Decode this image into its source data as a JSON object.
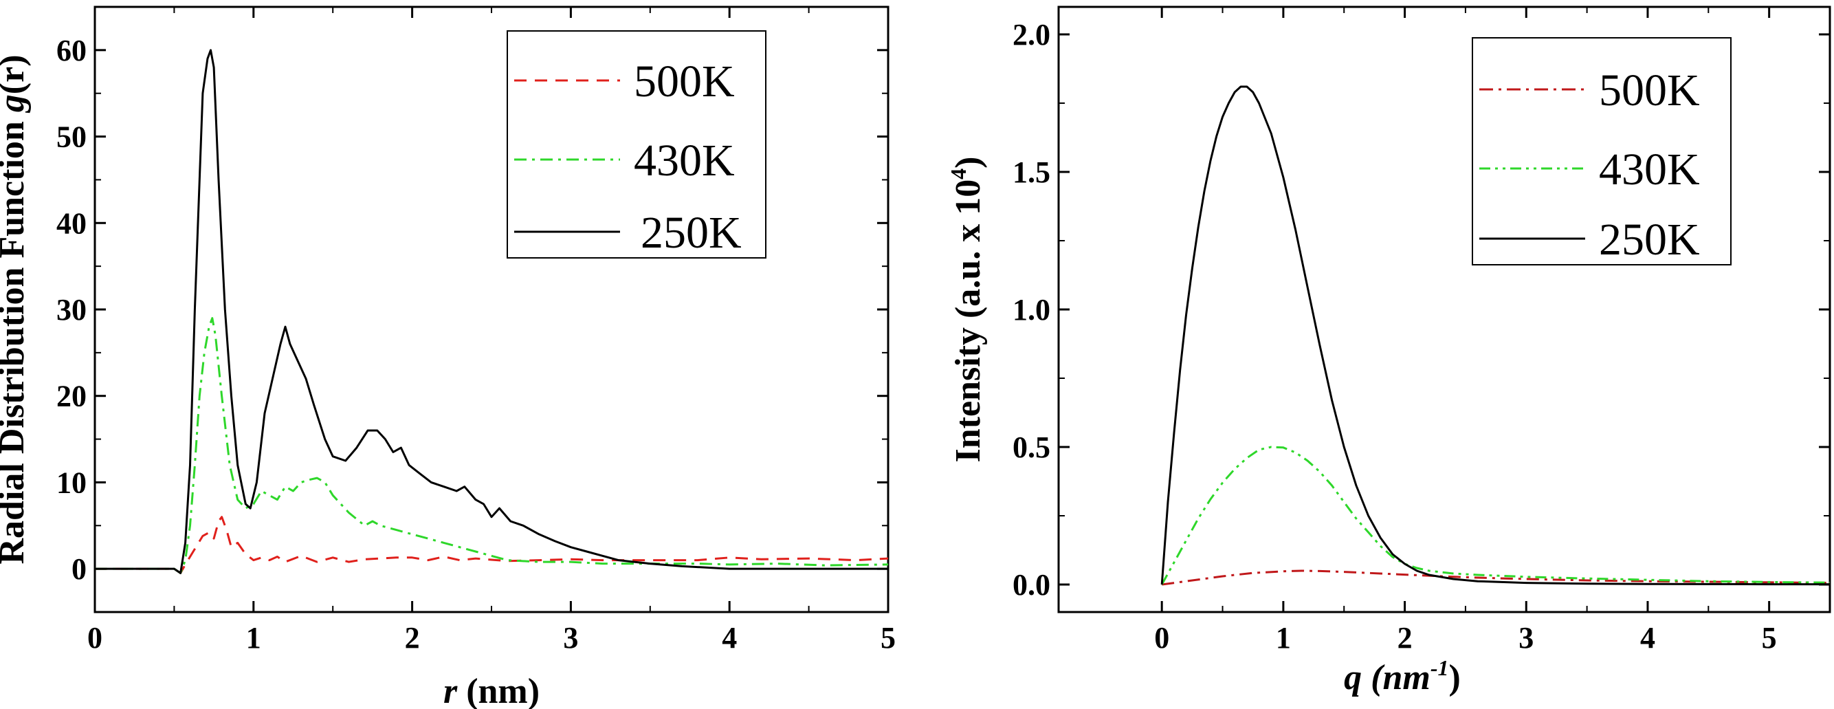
{
  "chart_data": [
    {
      "type": "line",
      "title": "",
      "xlabel_var": "r",
      "xlabel_rest": " (nm)",
      "ylabel_a": "Radial Distribution Function ",
      "ylabel_var": "g",
      "ylabel_b": "(r)",
      "xlim": [
        0,
        5
      ],
      "ylim": [
        -5,
        65
      ],
      "xticks": [
        0,
        1,
        2,
        3,
        4,
        5
      ],
      "yticks": [
        0,
        10,
        20,
        30,
        40,
        50,
        60
      ],
      "xtick_labels": [
        "0",
        "1",
        "2",
        "3",
        "4",
        "5"
      ],
      "ytick_labels": [
        "0",
        "10",
        "20",
        "30",
        "40",
        "50",
        "60"
      ],
      "legend_position": "top-right",
      "legend": [
        "500K",
        "430K",
        "250K"
      ],
      "series": [
        {
          "name": "500K",
          "color": "#e0201b",
          "style": "dashed",
          "points": [
            [
              0,
              0
            ],
            [
              0.5,
              0
            ],
            [
              0.54,
              -0.5
            ],
            [
              0.57,
              0.5
            ],
            [
              0.62,
              2
            ],
            [
              0.68,
              3.8
            ],
            [
              0.72,
              4.2
            ],
            [
              0.75,
              3.5
            ],
            [
              0.78,
              5.5
            ],
            [
              0.8,
              6
            ],
            [
              0.83,
              4.5
            ],
            [
              0.86,
              2.5
            ],
            [
              0.9,
              3
            ],
            [
              0.95,
              1.7
            ],
            [
              1.0,
              1
            ],
            [
              1.05,
              1.3
            ],
            [
              1.1,
              1.0
            ],
            [
              1.15,
              1.4
            ],
            [
              1.2,
              0.8
            ],
            [
              1.3,
              1.5
            ],
            [
              1.4,
              0.8
            ],
            [
              1.5,
              1.3
            ],
            [
              1.6,
              0.8
            ],
            [
              1.7,
              1.1
            ],
            [
              1.8,
              1.2
            ],
            [
              1.9,
              1.3
            ],
            [
              2.0,
              1.3
            ],
            [
              2.1,
              1.0
            ],
            [
              2.2,
              1.4
            ],
            [
              2.3,
              1.0
            ],
            [
              2.4,
              1.2
            ],
            [
              2.6,
              0.9
            ],
            [
              2.8,
              1.0
            ],
            [
              3.0,
              1.1
            ],
            [
              3.2,
              1.0
            ],
            [
              3.5,
              1.0
            ],
            [
              3.8,
              1.0
            ],
            [
              4.0,
              1.3
            ],
            [
              4.2,
              1.1
            ],
            [
              4.5,
              1.2
            ],
            [
              4.8,
              1.0
            ],
            [
              5.0,
              1.2
            ]
          ]
        },
        {
          "name": "430K",
          "color": "#2ed72a",
          "style": "dashdot",
          "points": [
            [
              0,
              0
            ],
            [
              0.5,
              0
            ],
            [
              0.54,
              -0.5
            ],
            [
              0.57,
              1
            ],
            [
              0.6,
              5
            ],
            [
              0.63,
              12
            ],
            [
              0.66,
              20
            ],
            [
              0.69,
              25
            ],
            [
              0.72,
              28
            ],
            [
              0.74,
              29
            ],
            [
              0.76,
              27
            ],
            [
              0.8,
              20
            ],
            [
              0.85,
              12
            ],
            [
              0.9,
              8
            ],
            [
              0.95,
              7
            ],
            [
              1.0,
              7.5
            ],
            [
              1.05,
              9
            ],
            [
              1.1,
              8.5
            ],
            [
              1.15,
              8
            ],
            [
              1.2,
              9.5
            ],
            [
              1.25,
              9
            ],
            [
              1.3,
              10
            ],
            [
              1.35,
              10.3
            ],
            [
              1.4,
              10.5
            ],
            [
              1.45,
              10
            ],
            [
              1.5,
              8.5
            ],
            [
              1.6,
              6.5
            ],
            [
              1.7,
              5
            ],
            [
              1.75,
              5.5
            ],
            [
              1.8,
              5
            ],
            [
              1.9,
              4.5
            ],
            [
              2.0,
              4
            ],
            [
              2.1,
              3.5
            ],
            [
              2.2,
              3
            ],
            [
              2.3,
              2.5
            ],
            [
              2.4,
              2
            ],
            [
              2.5,
              1.5
            ],
            [
              2.6,
              1
            ],
            [
              2.8,
              0.8
            ],
            [
              3.0,
              0.8
            ],
            [
              3.2,
              0.6
            ],
            [
              3.5,
              0.6
            ],
            [
              3.8,
              0.6
            ],
            [
              4.0,
              0.5
            ],
            [
              4.3,
              0.6
            ],
            [
              4.6,
              0.4
            ],
            [
              5.0,
              0.5
            ]
          ]
        },
        {
          "name": "250K",
          "color": "#000000",
          "style": "solid",
          "points": [
            [
              0,
              0
            ],
            [
              0.5,
              0
            ],
            [
              0.54,
              -0.5
            ],
            [
              0.57,
              3
            ],
            [
              0.6,
              12
            ],
            [
              0.63,
              30
            ],
            [
              0.66,
              45
            ],
            [
              0.68,
              55
            ],
            [
              0.71,
              59
            ],
            [
              0.73,
              60
            ],
            [
              0.75,
              58
            ],
            [
              0.78,
              45
            ],
            [
              0.82,
              30
            ],
            [
              0.86,
              20
            ],
            [
              0.9,
              12
            ],
            [
              0.95,
              7.5
            ],
            [
              0.98,
              7
            ],
            [
              1.02,
              10
            ],
            [
              1.07,
              18
            ],
            [
              1.12,
              22
            ],
            [
              1.17,
              26
            ],
            [
              1.2,
              28
            ],
            [
              1.23,
              26
            ],
            [
              1.28,
              24
            ],
            [
              1.33,
              22
            ],
            [
              1.38,
              19
            ],
            [
              1.45,
              15
            ],
            [
              1.5,
              13
            ],
            [
              1.58,
              12.5
            ],
            [
              1.65,
              14
            ],
            [
              1.72,
              16
            ],
            [
              1.78,
              16
            ],
            [
              1.83,
              15
            ],
            [
              1.88,
              13.5
            ],
            [
              1.93,
              14
            ],
            [
              1.98,
              12
            ],
            [
              2.05,
              11
            ],
            [
              2.12,
              10
            ],
            [
              2.2,
              9.5
            ],
            [
              2.28,
              9
            ],
            [
              2.33,
              9.5
            ],
            [
              2.4,
              8
            ],
            [
              2.45,
              7.5
            ],
            [
              2.5,
              6
            ],
            [
              2.55,
              7
            ],
            [
              2.62,
              5.5
            ],
            [
              2.7,
              5
            ],
            [
              2.8,
              4
            ],
            [
              2.9,
              3.2
            ],
            [
              3.0,
              2.5
            ],
            [
              3.1,
              2
            ],
            [
              3.2,
              1.5
            ],
            [
              3.3,
              1
            ],
            [
              3.5,
              0.6
            ],
            [
              3.7,
              0.3
            ],
            [
              4.0,
              0
            ],
            [
              4.5,
              0
            ],
            [
              5.0,
              0
            ]
          ]
        }
      ]
    },
    {
      "type": "line",
      "title": "",
      "xlabel_var": "q",
      "xlabel_unit": "(nm",
      "xlabel_sup": "-1",
      "xlabel_close": ")",
      "ylabel_main": "Intensity (a.u. x 10",
      "ylabel_sup": "4",
      "ylabel_close": ")",
      "xlim": [
        -0.85,
        5.5
      ],
      "ylim": [
        -0.1,
        2.1
      ],
      "xticks": [
        0,
        1,
        2,
        3,
        4,
        5
      ],
      "yticks": [
        0.0,
        0.5,
        1.0,
        1.5,
        2.0
      ],
      "xtick_labels": [
        "0",
        "1",
        "2",
        "3",
        "4",
        "5"
      ],
      "ytick_labels": [
        "0.0",
        "0.5",
        "1.0",
        "1.5",
        "2.0"
      ],
      "legend_position": "top-right",
      "legend": [
        "500K",
        "430K",
        "250K"
      ],
      "series": [
        {
          "name": "500K",
          "color": "#c0181a",
          "style": "dashdot",
          "points": [
            [
              0,
              0
            ],
            [
              0.25,
              0.015
            ],
            [
              0.5,
              0.03
            ],
            [
              0.75,
              0.042
            ],
            [
              1.0,
              0.048
            ],
            [
              1.15,
              0.05
            ],
            [
              1.3,
              0.049
            ],
            [
              1.5,
              0.046
            ],
            [
              1.8,
              0.04
            ],
            [
              2.0,
              0.036
            ],
            [
              2.3,
              0.03
            ],
            [
              2.6,
              0.025
            ],
            [
              3.0,
              0.02
            ],
            [
              3.5,
              0.015
            ],
            [
              4.0,
              0.012
            ],
            [
              4.5,
              0.01
            ],
            [
              5.0,
              0.008
            ],
            [
              5.5,
              0.006
            ]
          ]
        },
        {
          "name": "430K",
          "color": "#2ed72a",
          "style": "dashdotdot",
          "points": [
            [
              0,
              0
            ],
            [
              0.1,
              0.08
            ],
            [
              0.2,
              0.16
            ],
            [
              0.3,
              0.24
            ],
            [
              0.4,
              0.31
            ],
            [
              0.5,
              0.37
            ],
            [
              0.6,
              0.42
            ],
            [
              0.7,
              0.46
            ],
            [
              0.8,
              0.49
            ],
            [
              0.9,
              0.5
            ],
            [
              1.0,
              0.498
            ],
            [
              1.1,
              0.48
            ],
            [
              1.2,
              0.45
            ],
            [
              1.3,
              0.41
            ],
            [
              1.4,
              0.36
            ],
            [
              1.5,
              0.3
            ],
            [
              1.6,
              0.24
            ],
            [
              1.7,
              0.19
            ],
            [
              1.8,
              0.14
            ],
            [
              1.9,
              0.1
            ],
            [
              2.0,
              0.075
            ],
            [
              2.1,
              0.06
            ],
            [
              2.2,
              0.05
            ],
            [
              2.4,
              0.04
            ],
            [
              2.6,
              0.035
            ],
            [
              3.0,
              0.028
            ],
            [
              3.5,
              0.022
            ],
            [
              4.0,
              0.017
            ],
            [
              4.5,
              0.012
            ],
            [
              5.0,
              0.009
            ],
            [
              5.5,
              0.007
            ]
          ]
        },
        {
          "name": "250K",
          "color": "#000000",
          "style": "solid",
          "points": [
            [
              0,
              0
            ],
            [
              0.05,
              0.3
            ],
            [
              0.1,
              0.55
            ],
            [
              0.15,
              0.78
            ],
            [
              0.2,
              0.98
            ],
            [
              0.25,
              1.15
            ],
            [
              0.3,
              1.3
            ],
            [
              0.35,
              1.43
            ],
            [
              0.4,
              1.54
            ],
            [
              0.45,
              1.63
            ],
            [
              0.5,
              1.7
            ],
            [
              0.55,
              1.75
            ],
            [
              0.6,
              1.79
            ],
            [
              0.65,
              1.81
            ],
            [
              0.7,
              1.81
            ],
            [
              0.75,
              1.79
            ],
            [
              0.8,
              1.75
            ],
            [
              0.9,
              1.64
            ],
            [
              1.0,
              1.48
            ],
            [
              1.1,
              1.29
            ],
            [
              1.2,
              1.08
            ],
            [
              1.3,
              0.87
            ],
            [
              1.4,
              0.67
            ],
            [
              1.5,
              0.5
            ],
            [
              1.6,
              0.36
            ],
            [
              1.7,
              0.25
            ],
            [
              1.8,
              0.17
            ],
            [
              1.9,
              0.11
            ],
            [
              2.0,
              0.075
            ],
            [
              2.1,
              0.05
            ],
            [
              2.2,
              0.035
            ],
            [
              2.4,
              0.02
            ],
            [
              2.6,
              0.012
            ],
            [
              3.0,
              0.006
            ],
            [
              3.5,
              0.003
            ],
            [
              4.0,
              0.002
            ],
            [
              5.0,
              0.001
            ],
            [
              5.5,
              0.001
            ]
          ]
        }
      ]
    }
  ]
}
